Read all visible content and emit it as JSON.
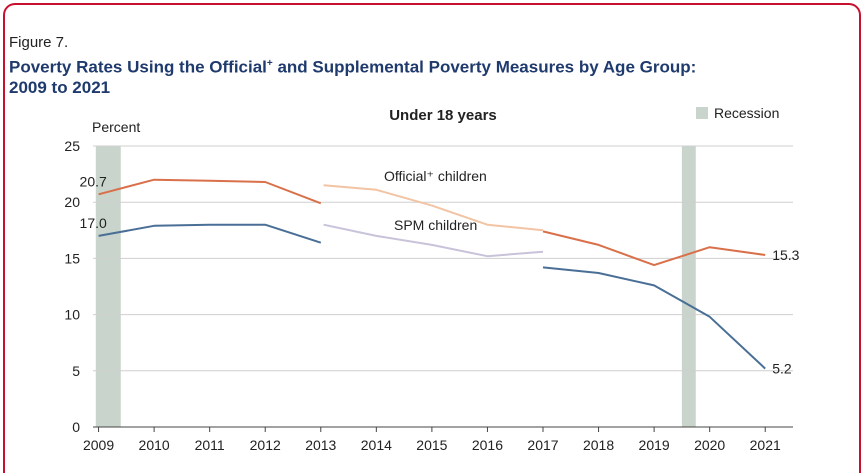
{
  "figure_label": "Figure 7.",
  "title_part1": "Poverty Rates Using the Official",
  "title_sup": "+",
  "title_part2": " and Supplemental Poverty Measures by Age Group:",
  "title_line2": "2009 to 2021",
  "colors": {
    "official": "#d9704a",
    "official_light": "#f2c4a3",
    "spm": "#4a6f96",
    "spm_light": "#c9c3d9",
    "recession": "#c9d4cc",
    "grid": "#cfcfcf",
    "title": "#1f3a6d"
  },
  "chart_data": {
    "type": "line",
    "panel_title": "Under 18 years",
    "ylabel": "Percent",
    "ylim": [
      0,
      25
    ],
    "yticks": [
      "0",
      "5",
      "10",
      "15",
      "20",
      "25"
    ],
    "x": [
      "2009",
      "2010",
      "2011",
      "2012",
      "2013",
      "2014",
      "2015",
      "2016",
      "2017",
      "2018",
      "2019",
      "2020",
      "2021"
    ],
    "legend": {
      "recession": "Recession",
      "position": "top-right"
    },
    "recession_bands": [
      [
        2008.95,
        2009.4
      ],
      [
        2019.5,
        2019.75
      ]
    ],
    "series": [
      {
        "name": "Official⁺ children",
        "color": "#d9704a",
        "segments": [
          {
            "x": [
              2009,
              2010,
              2011,
              2012,
              2013
            ],
            "y": [
              20.7,
              22.0,
              21.9,
              21.8,
              19.9
            ],
            "shade": "dark"
          },
          {
            "x": [
              2013.05,
              2014,
              2015,
              2016,
              2017
            ],
            "y": [
              21.5,
              21.1,
              19.7,
              18.0,
              17.5
            ],
            "shade": "light"
          },
          {
            "x": [
              2017,
              2018,
              2019,
              2020,
              2021
            ],
            "y": [
              17.4,
              16.2,
              14.4,
              16.0,
              15.3
            ],
            "shade": "dark"
          }
        ]
      },
      {
        "name": "SPM children",
        "color": "#4a6f96",
        "segments": [
          {
            "x": [
              2009,
              2010,
              2011,
              2012,
              2013
            ],
            "y": [
              17.0,
              17.9,
              18.0,
              18.0,
              16.4
            ],
            "shade": "dark"
          },
          {
            "x": [
              2013.05,
              2014,
              2015,
              2016,
              2017
            ],
            "y": [
              18.0,
              17.0,
              16.2,
              15.2,
              15.6
            ],
            "shade": "light"
          },
          {
            "x": [
              2017,
              2018,
              2019,
              2020,
              2021
            ],
            "y": [
              14.2,
              13.7,
              12.6,
              9.8,
              5.2
            ],
            "shade": "dark"
          }
        ]
      }
    ],
    "labels": [
      {
        "text": "20.7",
        "x": 2009,
        "y": 20.7
      },
      {
        "text": "17.0",
        "x": 2009,
        "y": 17.0
      },
      {
        "text": "15.3",
        "x": 2021,
        "y": 15.3
      },
      {
        "text": "5.2",
        "x": 2021,
        "y": 5.2
      }
    ]
  }
}
